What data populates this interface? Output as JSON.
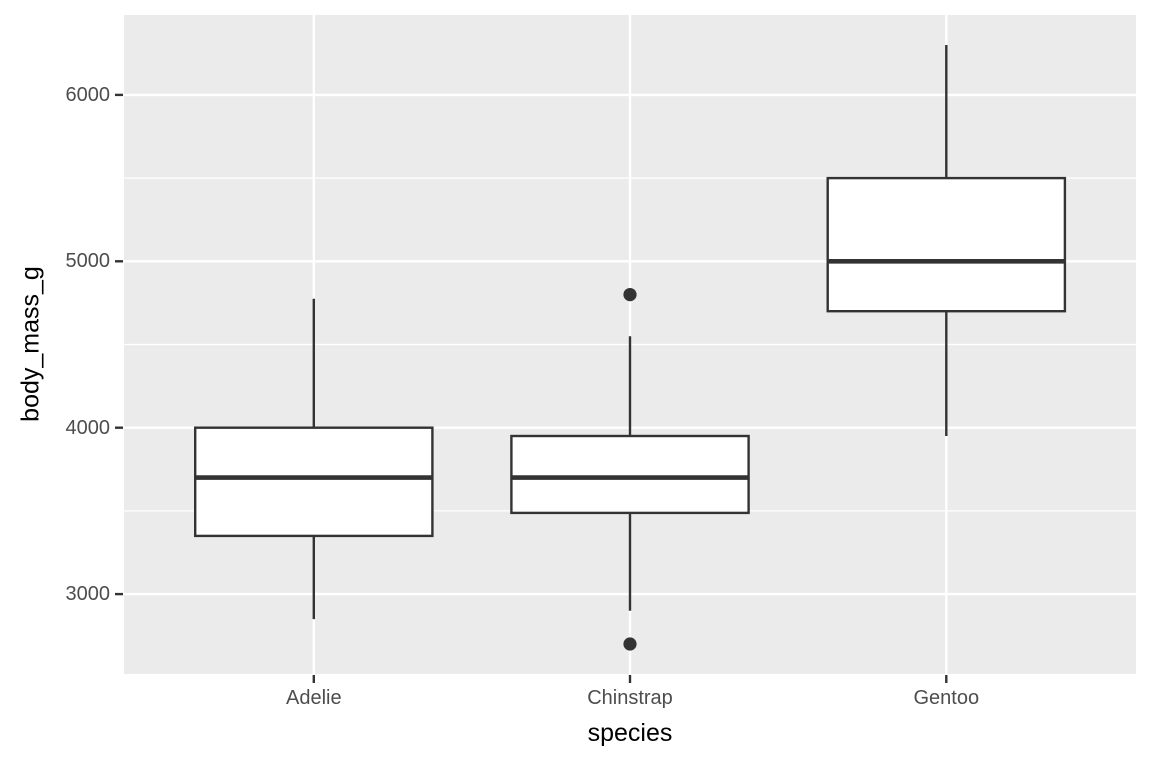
{
  "chart_data": {
    "type": "boxplot",
    "title": "",
    "xlabel": "species",
    "ylabel": "body_mass_g",
    "categories": [
      "Adelie",
      "Chinstrap",
      "Gentoo"
    ],
    "series": [
      {
        "name": "Adelie",
        "whisker_low": 2850,
        "q1": 3350,
        "median": 3700,
        "q3": 4000,
        "whisker_high": 4775,
        "outliers": []
      },
      {
        "name": "Chinstrap",
        "whisker_low": 2900,
        "q1": 3488,
        "median": 3700,
        "q3": 3950,
        "whisker_high": 4550,
        "outliers": [
          2700,
          4800
        ]
      },
      {
        "name": "Gentoo",
        "whisker_low": 3950,
        "q1": 4700,
        "median": 5000,
        "q3": 5500,
        "whisker_high": 6300,
        "outliers": []
      }
    ],
    "ylim": [
      2520,
      6480
    ],
    "y_ticks": [
      3000,
      4000,
      5000,
      6000
    ],
    "y_tick_labels": [
      "3000",
      "4000",
      "5000",
      "6000"
    ],
    "y_minor_gridlines": [
      3500,
      4500,
      5500
    ],
    "grid": "horizontal-major-minor, vertical-major-per-category",
    "legend_position": "none",
    "colors": {
      "panel_background": "#EBEBEB",
      "gridline": "#FFFFFF",
      "box_fill": "#FFFFFF",
      "box_stroke": "#333333",
      "median_stroke": "#333333",
      "outlier_fill": "#333333",
      "tick_mark": "#333333",
      "tick_text": "#4D4D4D",
      "axis_title_text": "#000000"
    }
  }
}
